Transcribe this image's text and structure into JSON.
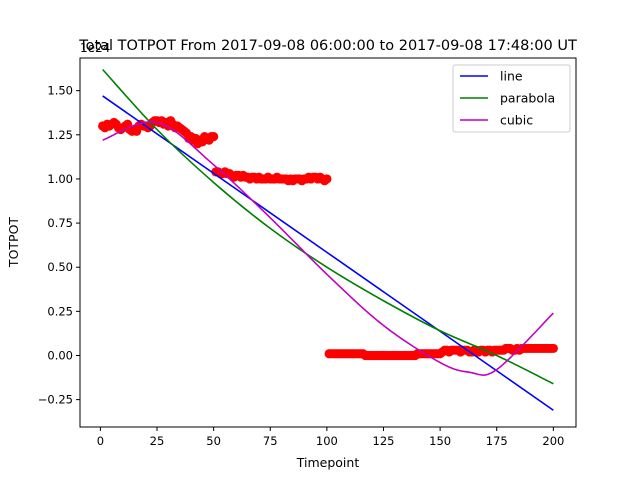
{
  "chart_data": {
    "type": "scatter",
    "title": "Total TOTPOT From 2017-09-08 06:00:00 to 2017-09-08 17:48:00 UT",
    "xlabel": "Timepoint",
    "ylabel": "TOTPOT",
    "y_scale_label": "1e24",
    "xlim": [
      -9,
      210
    ],
    "ylim": [
      -0.405,
      1.685
    ],
    "x_ticks": [
      0,
      25,
      50,
      75,
      100,
      125,
      150,
      175,
      200
    ],
    "x_tick_labels": [
      "0",
      "25",
      "50",
      "75",
      "100",
      "125",
      "150",
      "175",
      "200"
    ],
    "y_ticks": [
      -0.25,
      0,
      0.25,
      0.5,
      0.75,
      1.0,
      1.25,
      1.5
    ],
    "y_tick_labels": [
      "−0.25",
      "0.00",
      "0.25",
      "0.50",
      "0.75",
      "1.00",
      "1.25",
      "1.50"
    ],
    "grid": false,
    "legend_position": "top-right",
    "scatter": {
      "color": "#ff0000",
      "points": [
        [
          1,
          1.3
        ],
        [
          2,
          1.29
        ],
        [
          3,
          1.31
        ],
        [
          4,
          1.3
        ],
        [
          5,
          1.31
        ],
        [
          6,
          1.32
        ],
        [
          7,
          1.31
        ],
        [
          8,
          1.29
        ],
        [
          9,
          1.28
        ],
        [
          10,
          1.29
        ],
        [
          11,
          1.3
        ],
        [
          12,
          1.31
        ],
        [
          13,
          1.28
        ],
        [
          14,
          1.27
        ],
        [
          15,
          1.28
        ],
        [
          16,
          1.27
        ],
        [
          17,
          1.3
        ],
        [
          18,
          1.31
        ],
        [
          19,
          1.3
        ],
        [
          20,
          1.3
        ],
        [
          21,
          1.29
        ],
        [
          22,
          1.3
        ],
        [
          23,
          1.32
        ],
        [
          24,
          1.33
        ],
        [
          25,
          1.33
        ],
        [
          26,
          1.32
        ],
        [
          27,
          1.33
        ],
        [
          28,
          1.31
        ],
        [
          29,
          1.32
        ],
        [
          30,
          1.3
        ],
        [
          31,
          1.33
        ],
        [
          32,
          1.31
        ],
        [
          33,
          1.29
        ],
        [
          34,
          1.3
        ],
        [
          35,
          1.29
        ],
        [
          36,
          1.28
        ],
        [
          37,
          1.27
        ],
        [
          38,
          1.26
        ],
        [
          39,
          1.23
        ],
        [
          40,
          1.24
        ],
        [
          41,
          1.22
        ],
        [
          42,
          1.23
        ],
        [
          43,
          1.2
        ],
        [
          44,
          1.22
        ],
        [
          45,
          1.21
        ],
        [
          46,
          1.24
        ],
        [
          47,
          1.23
        ],
        [
          48,
          1.22
        ],
        [
          49,
          1.24
        ],
        [
          50,
          1.24
        ],
        [
          51,
          1.04
        ],
        [
          52,
          1.04
        ],
        [
          53,
          1.03
        ],
        [
          54,
          1.03
        ],
        [
          55,
          1.04
        ],
        [
          56,
          1.03
        ],
        [
          57,
          1.03
        ],
        [
          58,
          1.02
        ],
        [
          59,
          1.01
        ],
        [
          60,
          1.02
        ],
        [
          61,
          1.02
        ],
        [
          62,
          1.01
        ],
        [
          63,
          1.02
        ],
        [
          64,
          1.01
        ],
        [
          65,
          1.01
        ],
        [
          66,
          1.0
        ],
        [
          67,
          1.01
        ],
        [
          68,
          1.01
        ],
        [
          69,
          1.0
        ],
        [
          70,
          1.01
        ],
        [
          71,
          1.0
        ],
        [
          72,
          1.0
        ],
        [
          73,
          1.0
        ],
        [
          74,
          1.01
        ],
        [
          75,
          1.0
        ],
        [
          76,
          1.0
        ],
        [
          77,
          1.0
        ],
        [
          78,
          1.01
        ],
        [
          79,
          1.0
        ],
        [
          80,
          1.0
        ],
        [
          81,
          1.0
        ],
        [
          82,
          1.0
        ],
        [
          83,
          0.99
        ],
        [
          84,
          1.0
        ],
        [
          85,
          0.99
        ],
        [
          86,
          1.0
        ],
        [
          87,
          1.0
        ],
        [
          88,
          1.0
        ],
        [
          89,
          0.99
        ],
        [
          90,
          1.0
        ],
        [
          91,
          1.0
        ],
        [
          92,
          1.01
        ],
        [
          93,
          1.0
        ],
        [
          94,
          1.01
        ],
        [
          95,
          1.01
        ],
        [
          96,
          1.0
        ],
        [
          97,
          1.01
        ],
        [
          98,
          1.0
        ],
        [
          99,
          0.99
        ],
        [
          100,
          1.0
        ],
        [
          101,
          0.01
        ],
        [
          102,
          0.01
        ],
        [
          103,
          0.01
        ],
        [
          104,
          0.01
        ],
        [
          105,
          0.01
        ],
        [
          106,
          0.01
        ],
        [
          107,
          0.01
        ],
        [
          108,
          0.01
        ],
        [
          109,
          0.01
        ],
        [
          110,
          0.01
        ],
        [
          111,
          0.01
        ],
        [
          112,
          0.01
        ],
        [
          113,
          0.01
        ],
        [
          114,
          0.01
        ],
        [
          115,
          0.01
        ],
        [
          116,
          0.01
        ],
        [
          117,
          0.0
        ],
        [
          118,
          0.0
        ],
        [
          119,
          0.0
        ],
        [
          120,
          0.0
        ],
        [
          121,
          0.0
        ],
        [
          122,
          0.0
        ],
        [
          123,
          0.0
        ],
        [
          124,
          0.0
        ],
        [
          125,
          0.0
        ],
        [
          126,
          0.0
        ],
        [
          127,
          0.0
        ],
        [
          128,
          0.0
        ],
        [
          129,
          0.0
        ],
        [
          130,
          0.0
        ],
        [
          131,
          0.0
        ],
        [
          132,
          0.0
        ],
        [
          133,
          0.0
        ],
        [
          134,
          0.0
        ],
        [
          135,
          0.0
        ],
        [
          136,
          0.0
        ],
        [
          137,
          0.0
        ],
        [
          138,
          0.0
        ],
        [
          139,
          0.0
        ],
        [
          140,
          0.01
        ],
        [
          141,
          0.01
        ],
        [
          142,
          0.01
        ],
        [
          143,
          0.01
        ],
        [
          144,
          0.01
        ],
        [
          145,
          0.01
        ],
        [
          146,
          0.01
        ],
        [
          147,
          0.01
        ],
        [
          148,
          0.01
        ],
        [
          149,
          0.01
        ],
        [
          150,
          0.01
        ],
        [
          151,
          0.02
        ],
        [
          152,
          0.03
        ],
        [
          153,
          0.03
        ],
        [
          154,
          0.02
        ],
        [
          155,
          0.03
        ],
        [
          156,
          0.03
        ],
        [
          157,
          0.03
        ],
        [
          158,
          0.03
        ],
        [
          159,
          0.02
        ],
        [
          160,
          0.03
        ],
        [
          161,
          0.03
        ],
        [
          162,
          0.03
        ],
        [
          163,
          0.02
        ],
        [
          164,
          0.02
        ],
        [
          165,
          0.03
        ],
        [
          166,
          0.03
        ],
        [
          167,
          0.02
        ],
        [
          168,
          0.03
        ],
        [
          169,
          0.03
        ],
        [
          170,
          0.02
        ],
        [
          171,
          0.03
        ],
        [
          172,
          0.03
        ],
        [
          173,
          0.02
        ],
        [
          174,
          0.03
        ],
        [
          175,
          0.03
        ],
        [
          176,
          0.03
        ],
        [
          177,
          0.03
        ],
        [
          178,
          0.03
        ],
        [
          179,
          0.04
        ],
        [
          180,
          0.04
        ],
        [
          181,
          0.04
        ],
        [
          182,
          0.03
        ],
        [
          183,
          0.03
        ],
        [
          184,
          0.04
        ],
        [
          185,
          0.03
        ],
        [
          186,
          0.04
        ],
        [
          187,
          0.04
        ],
        [
          188,
          0.04
        ],
        [
          189,
          0.04
        ],
        [
          190,
          0.04
        ],
        [
          191,
          0.04
        ],
        [
          192,
          0.04
        ],
        [
          193,
          0.04
        ],
        [
          194,
          0.04
        ],
        [
          195,
          0.04
        ],
        [
          196,
          0.04
        ],
        [
          197,
          0.04
        ],
        [
          198,
          0.04
        ],
        [
          199,
          0.04
        ],
        [
          200,
          0.04
        ]
      ]
    },
    "series": [
      {
        "name": "line",
        "color": "#0000ff",
        "x": [
          1,
          200
        ],
        "y": [
          1.47,
          -0.31
        ]
      },
      {
        "name": "parabola",
        "color": "#008000",
        "x": [
          1,
          25,
          50,
          75,
          100,
          125,
          150,
          175,
          200
        ],
        "y": [
          1.62,
          1.28,
          0.98,
          0.72,
          0.5,
          0.31,
          0.14,
          0.0,
          -0.16
        ]
      },
      {
        "name": "cubic",
        "color": "#c000c0",
        "x": [
          1,
          25,
          50,
          75,
          100,
          125,
          150,
          163,
          175,
          200
        ],
        "y": [
          1.22,
          1.32,
          1.08,
          0.78,
          0.46,
          0.17,
          -0.04,
          -0.095,
          -0.08,
          0.24
        ]
      }
    ]
  }
}
